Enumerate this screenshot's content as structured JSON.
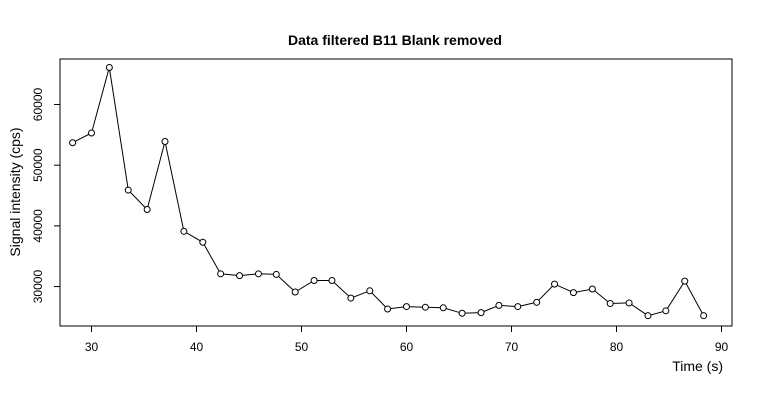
{
  "chart_data": {
    "type": "line",
    "title": "Data filtered B11 Blank removed",
    "xlabel": "Time (s)",
    "ylabel": "Signal intensity (cps)",
    "xlim": [
      27,
      91
    ],
    "ylim": [
      23500,
      67500
    ],
    "xticks": [
      30,
      40,
      50,
      60,
      70,
      80,
      90
    ],
    "yticks": [
      30000,
      40000,
      50000,
      60000
    ],
    "grid": false,
    "x": [
      28.2,
      30.0,
      31.7,
      33.5,
      35.3,
      37.0,
      38.8,
      40.6,
      42.3,
      44.1,
      45.9,
      47.6,
      49.4,
      51.2,
      52.9,
      54.7,
      56.5,
      58.2,
      60.0,
      61.8,
      63.5,
      65.3,
      67.1,
      68.8,
      70.6,
      72.4,
      74.1,
      75.9,
      77.7,
      79.4,
      81.2,
      83.0,
      84.7,
      86.5,
      88.3
    ],
    "y": [
      53700,
      55300,
      66100,
      45900,
      42700,
      53900,
      39100,
      37300,
      32100,
      31800,
      32100,
      32000,
      29100,
      31000,
      31000,
      28100,
      29300,
      26300,
      26700,
      26600,
      26500,
      25600,
      25700,
      26900,
      26700,
      27400,
      30400,
      29000,
      29600,
      27200,
      27300,
      25200,
      26000,
      30900,
      25200
    ]
  }
}
